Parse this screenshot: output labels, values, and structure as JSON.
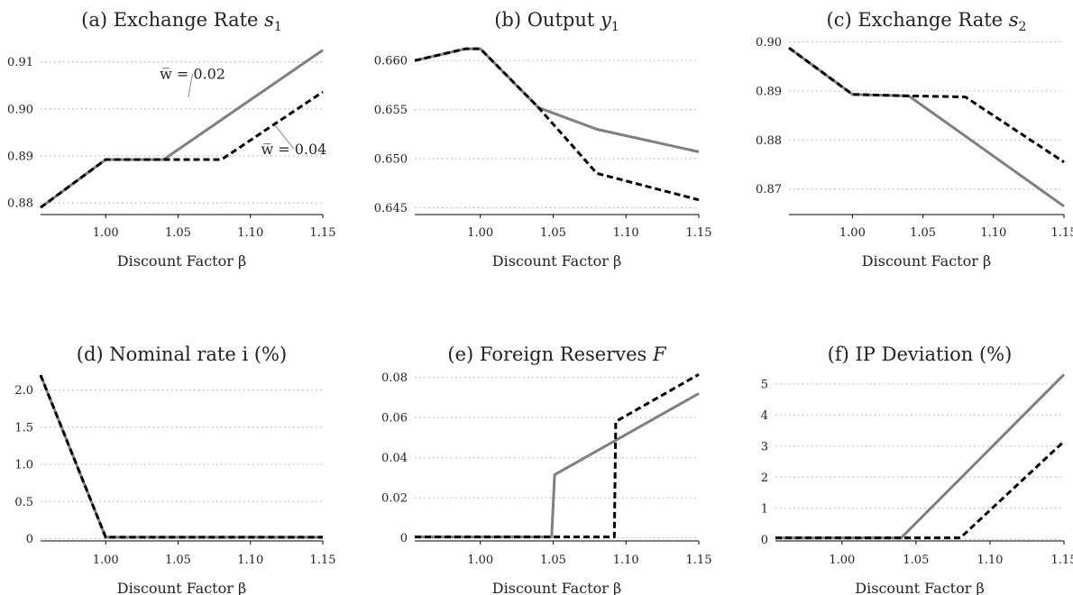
{
  "figure": {
    "x_axis_label": "Discount Factor β"
  },
  "series_styles": {
    "low": {
      "color": "#7f7f7f",
      "dash": "solid",
      "label": "w̅ = 0.02"
    },
    "high": {
      "color": "#000000",
      "dash": "dashed",
      "label": "w̅ = 0.04"
    }
  },
  "chart_data": [
    {
      "id": "a",
      "type": "line",
      "title_text": "(a) Exchange Rate ",
      "title_var": "s",
      "title_sub": "1",
      "xlabel": "Discount Factor β",
      "xlim": [
        0.955,
        1.15
      ],
      "ylim": [
        0.8775,
        0.9155
      ],
      "xticks": [
        1.0,
        1.05,
        1.1,
        1.15
      ],
      "xtick_labels": [
        "1.00",
        "1.05",
        "1.10",
        "1.15"
      ],
      "yticks": [
        0.88,
        0.89,
        0.9,
        0.91
      ],
      "ytick_labels": [
        "0.88",
        "0.89",
        "0.90",
        "0.91"
      ],
      "grid": true,
      "series": [
        {
          "style": "low",
          "x": [
            0.955,
            1.0,
            1.04,
            1.15
          ],
          "y": [
            0.879,
            0.8892,
            0.8892,
            0.9125
          ]
        },
        {
          "style": "high",
          "x": [
            0.955,
            1.0,
            1.04,
            1.08,
            1.15
          ],
          "y": [
            0.879,
            0.8892,
            0.8892,
            0.8892,
            0.9036
          ]
        }
      ],
      "annotations": [
        {
          "text": "w̅ = 0.02",
          "x": 1.06,
          "y": 0.9075,
          "tx": 1.057,
          "ty": 0.9025
        },
        {
          "text": "w̅ = 0.04",
          "x": 1.13,
          "y": 0.8915,
          "tx": 1.117,
          "ty": 0.8965
        }
      ]
    },
    {
      "id": "b",
      "type": "line",
      "title_text": "(b) Output ",
      "title_var": "y",
      "title_sub": "1",
      "xlabel": "Discount Factor β",
      "xlim": [
        0.955,
        1.15
      ],
      "ylim": [
        0.6443,
        0.6625
      ],
      "xticks": [
        1.0,
        1.05,
        1.1,
        1.15
      ],
      "xtick_labels": [
        "1.00",
        "1.05",
        "1.10",
        "1.15"
      ],
      "yticks": [
        0.645,
        0.65,
        0.655,
        0.66
      ],
      "ytick_labels": [
        "0.645",
        "0.650",
        "0.655",
        "0.660"
      ],
      "grid": true,
      "series": [
        {
          "style": "low",
          "x": [
            0.955,
            0.99,
            1.0,
            1.04,
            1.08,
            1.15
          ],
          "y": [
            0.66,
            0.6612,
            0.6612,
            0.6552,
            0.653,
            0.6507
          ]
        },
        {
          "style": "high",
          "x": [
            0.955,
            0.99,
            1.0,
            1.04,
            1.08,
            1.15
          ],
          "y": [
            0.66,
            0.6612,
            0.6612,
            0.6552,
            0.6485,
            0.6458
          ]
        }
      ]
    },
    {
      "id": "c",
      "type": "line",
      "title_text": "(c) Exchange Rate ",
      "title_var": "s",
      "title_sub": "2",
      "xlabel": "Discount Factor β",
      "xlim": [
        0.955,
        1.15
      ],
      "ylim": [
        0.8648,
        0.9012
      ],
      "xticks": [
        1.0,
        1.05,
        1.1,
        1.15
      ],
      "xtick_labels": [
        "1.00",
        "1.05",
        "1.10",
        "1.15"
      ],
      "yticks": [
        0.87,
        0.88,
        0.89,
        0.9
      ],
      "ytick_labels": [
        "0.87",
        "0.88",
        "0.89",
        "0.90"
      ],
      "grid": true,
      "series": [
        {
          "style": "low",
          "x": [
            0.955,
            1.0,
            1.04,
            1.15
          ],
          "y": [
            0.8988,
            0.8893,
            0.889,
            0.8665
          ]
        },
        {
          "style": "high",
          "x": [
            0.955,
            1.0,
            1.04,
            1.08,
            1.15
          ],
          "y": [
            0.8988,
            0.8893,
            0.889,
            0.8888,
            0.8755
          ]
        }
      ]
    },
    {
      "id": "d",
      "type": "line",
      "title_text": "(d) Nominal rate i (%)",
      "title_var": "",
      "title_sub": "",
      "xlabel": "Discount Factor β",
      "xlim": [
        0.955,
        1.15
      ],
      "ylim": [
        -0.03,
        2.25
      ],
      "xticks": [
        1.0,
        1.05,
        1.1,
        1.15
      ],
      "xtick_labels": [
        "1.00",
        "1.05",
        "1.10",
        "1.15"
      ],
      "yticks": [
        0,
        0.5,
        1.0,
        1.5,
        2.0
      ],
      "ytick_labels": [
        "0",
        "0.5",
        "1.0",
        "1.5",
        "2.0"
      ],
      "grid": true,
      "series": [
        {
          "style": "low",
          "x": [
            0.955,
            1.0,
            1.15
          ],
          "y": [
            2.2,
            0.02,
            0.02
          ]
        },
        {
          "style": "high",
          "x": [
            0.955,
            1.0,
            1.15
          ],
          "y": [
            2.2,
            0.02,
            0.02
          ]
        }
      ]
    },
    {
      "id": "e",
      "type": "line",
      "title_text": "(e) Foreign Reserves ",
      "title_var": "F",
      "title_sub": "",
      "xlabel": "Discount Factor β",
      "xlim": [
        0.955,
        1.15
      ],
      "ylim": [
        -0.0015,
        0.083
      ],
      "xticks": [
        1.0,
        1.05,
        1.1,
        1.15
      ],
      "xtick_labels": [
        "1.00",
        "1.05",
        "1.10",
        "1.15"
      ],
      "yticks": [
        0,
        0.02,
        0.04,
        0.06,
        0.08
      ],
      "ytick_labels": [
        "0",
        "0.02",
        "0.04",
        "0.06",
        "0.08"
      ],
      "grid": true,
      "series": [
        {
          "style": "low",
          "x": [
            0.955,
            1.049,
            1.051,
            1.15
          ],
          "y": [
            0.0005,
            0.0005,
            0.0315,
            0.072
          ]
        },
        {
          "style": "high",
          "x": [
            0.955,
            1.092,
            1.093,
            1.15
          ],
          "y": [
            0.0005,
            0.0005,
            0.058,
            0.0815
          ]
        }
      ]
    },
    {
      "id": "f",
      "type": "line",
      "title_text": "(f) IP Deviation (%)",
      "title_var": "",
      "title_sub": "",
      "xlabel": "Discount Factor β",
      "xlim": [
        0.955,
        1.15
      ],
      "ylim": [
        -0.05,
        5.4
      ],
      "xticks": [
        1.0,
        1.05,
        1.1,
        1.15
      ],
      "xtick_labels": [
        "1.00",
        "1.05",
        "1.10",
        "1.15"
      ],
      "yticks": [
        0,
        1,
        2,
        3,
        4,
        5
      ],
      "ytick_labels": [
        "0",
        "1",
        "2",
        "3",
        "4",
        "5"
      ],
      "grid": true,
      "series": [
        {
          "style": "low",
          "x": [
            0.955,
            1.04,
            1.15
          ],
          "y": [
            0.05,
            0.05,
            5.3
          ]
        },
        {
          "style": "high",
          "x": [
            0.955,
            1.08,
            1.15
          ],
          "y": [
            0.05,
            0.05,
            3.15
          ]
        }
      ]
    }
  ]
}
